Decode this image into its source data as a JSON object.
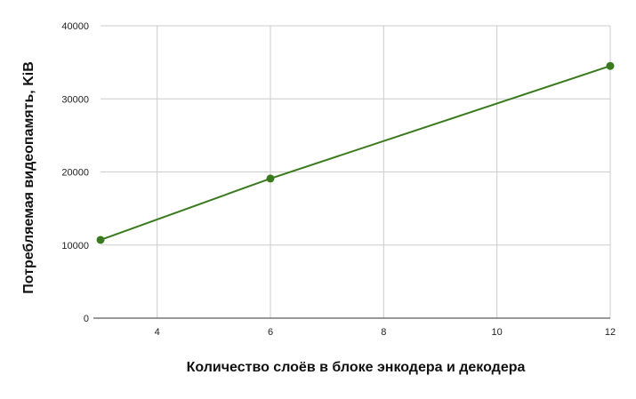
{
  "chart_data": {
    "type": "line",
    "title": "",
    "xlabel": "Количество слоёв в блоке энкодера и декодера",
    "ylabel": "Потребляемая видеопамять, KiB",
    "x": [
      3,
      6,
      12
    ],
    "series": [
      {
        "name": "",
        "values": [
          10700,
          19100,
          34500
        ],
        "color": "#3a7a1e"
      }
    ],
    "xlim": [
      3,
      12
    ],
    "ylim": [
      0,
      40000
    ],
    "x_ticks": [
      4,
      6,
      8,
      10,
      12
    ],
    "y_ticks": [
      0,
      10000,
      20000,
      30000,
      40000
    ],
    "grid": true,
    "legend": "none"
  }
}
